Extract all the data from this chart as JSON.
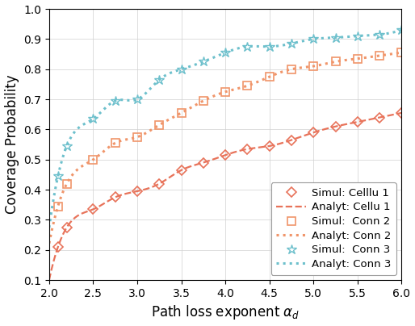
{
  "xlim": [
    2,
    6
  ],
  "ylim": [
    0.1,
    1.0
  ],
  "xticks": [
    2,
    2.5,
    3,
    3.5,
    4,
    4.5,
    5,
    5.5,
    6
  ],
  "yticks": [
    0.1,
    0.2,
    0.3,
    0.4,
    0.5,
    0.6,
    0.7,
    0.8,
    0.9,
    1.0
  ],
  "xlabel": "Path loss exponent $\\alpha_d$",
  "ylabel": "Coverage Probability",
  "color_red": "#E8735A",
  "color_orange": "#F0956A",
  "color_blue": "#6DC0CC",
  "simul1_x": [
    2.1,
    2.2,
    2.5,
    2.75,
    3.0,
    3.25,
    3.5,
    3.75,
    4.0,
    4.25,
    4.5,
    4.75,
    5.0,
    5.25,
    5.5,
    5.75,
    6.0
  ],
  "simul1_y": [
    0.21,
    0.275,
    0.335,
    0.375,
    0.395,
    0.42,
    0.465,
    0.49,
    0.515,
    0.535,
    0.545,
    0.565,
    0.59,
    0.61,
    0.625,
    0.64,
    0.655
  ],
  "simul2_x": [
    2.1,
    2.2,
    2.5,
    2.75,
    3.0,
    3.25,
    3.5,
    3.75,
    4.0,
    4.25,
    4.5,
    4.75,
    5.0,
    5.25,
    5.5,
    5.75,
    6.0
  ],
  "simul2_y": [
    0.345,
    0.42,
    0.5,
    0.555,
    0.575,
    0.615,
    0.655,
    0.695,
    0.725,
    0.745,
    0.775,
    0.8,
    0.81,
    0.825,
    0.835,
    0.845,
    0.855
  ],
  "simul3_x": [
    2.1,
    2.2,
    2.5,
    2.75,
    3.0,
    3.25,
    3.5,
    3.75,
    4.0,
    4.25,
    4.5,
    4.75,
    5.0,
    5.25,
    5.5,
    5.75,
    6.0
  ],
  "simul3_y": [
    0.445,
    0.545,
    0.635,
    0.695,
    0.7,
    0.765,
    0.8,
    0.825,
    0.855,
    0.875,
    0.875,
    0.885,
    0.9,
    0.905,
    0.91,
    0.915,
    0.93
  ],
  "legend_labels": [
    "Simul: Celllu 1",
    "Analyt: Cellu 1",
    "Simul:  Conn 2",
    "Analyt: Conn 2",
    "Simul:  Conn 3",
    "Analyt: Conn 3"
  ],
  "fontsize_label": 12,
  "fontsize_tick": 10,
  "fontsize_legend": 9.5
}
